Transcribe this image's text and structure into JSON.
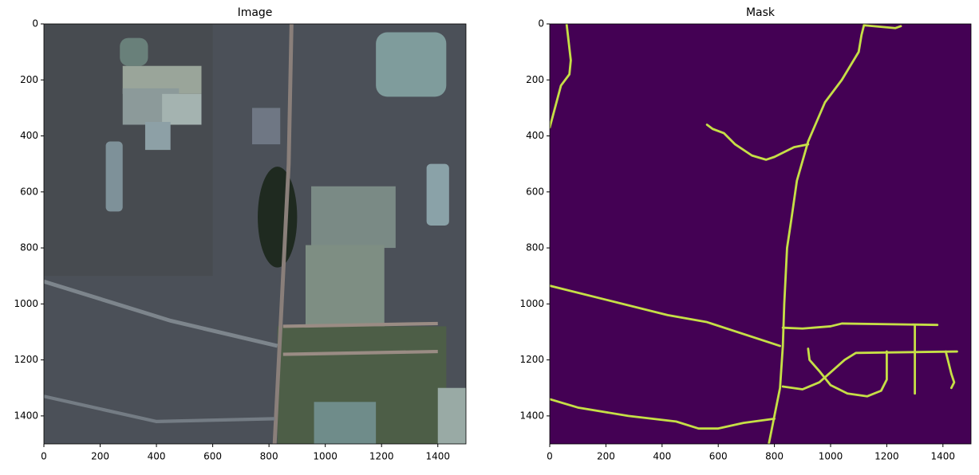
{
  "chart_data": [
    {
      "type": "image",
      "title": "Image",
      "xlim": [
        0,
        1500
      ],
      "ylim": [
        1500,
        0
      ],
      "xticks": [
        0,
        200,
        400,
        600,
        800,
        1000,
        1200,
        1400
      ],
      "yticks": [
        0,
        200,
        400,
        600,
        800,
        1000,
        1200,
        1400
      ]
    },
    {
      "type": "image",
      "title": "Mask",
      "xlim": [
        0,
        1500
      ],
      "ylim": [
        1500,
        0
      ],
      "xticks": [
        0,
        200,
        400,
        600,
        800,
        1000,
        1200,
        1400
      ],
      "yticks": [
        0,
        200,
        400,
        600,
        800,
        1000,
        1200,
        1400
      ]
    }
  ]
}
